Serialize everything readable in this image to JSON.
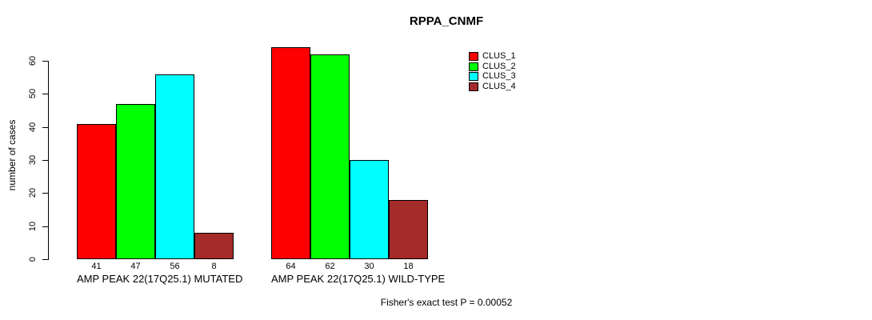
{
  "title": "RPPA_CNMF",
  "y_axis": {
    "label": "number of cases",
    "ticks": [
      0,
      10,
      20,
      30,
      40,
      50,
      60
    ]
  },
  "legend": {
    "items": [
      {
        "label": "CLUS_1",
        "color": "#ff0000"
      },
      {
        "label": "CLUS_2",
        "color": "#00ff00"
      },
      {
        "label": "CLUS_3",
        "color": "#00ffff"
      },
      {
        "label": "CLUS_4",
        "color": "#a52a2a"
      }
    ]
  },
  "footer": {
    "annotation": "Fisher's exact test P = 0.00052"
  },
  "chart_data": {
    "type": "bar",
    "title": "RPPA_CNMF",
    "ylabel": "number of cases",
    "xlabel": "",
    "categories": [
      "AMP PEAK 22(17Q25.1) MUTATED",
      "AMP PEAK 22(17Q25.1) WILD-TYPE"
    ],
    "series": [
      {
        "name": "CLUS_1",
        "color": "#ff0000",
        "values": [
          41,
          64
        ]
      },
      {
        "name": "CLUS_2",
        "color": "#00ff00",
        "values": [
          47,
          62
        ]
      },
      {
        "name": "CLUS_3",
        "color": "#00ffff",
        "values": [
          56,
          30
        ]
      },
      {
        "name": "CLUS_4",
        "color": "#a52a2a",
        "values": [
          8,
          18
        ]
      }
    ],
    "bar_value_labels_shown": true,
    "yticks": [
      0,
      10,
      20,
      30,
      40,
      50,
      60
    ],
    "ylim": [
      0,
      66
    ],
    "grid": false,
    "legend_position": "top-right",
    "annotation": "Fisher's exact test P = 0.00052"
  }
}
